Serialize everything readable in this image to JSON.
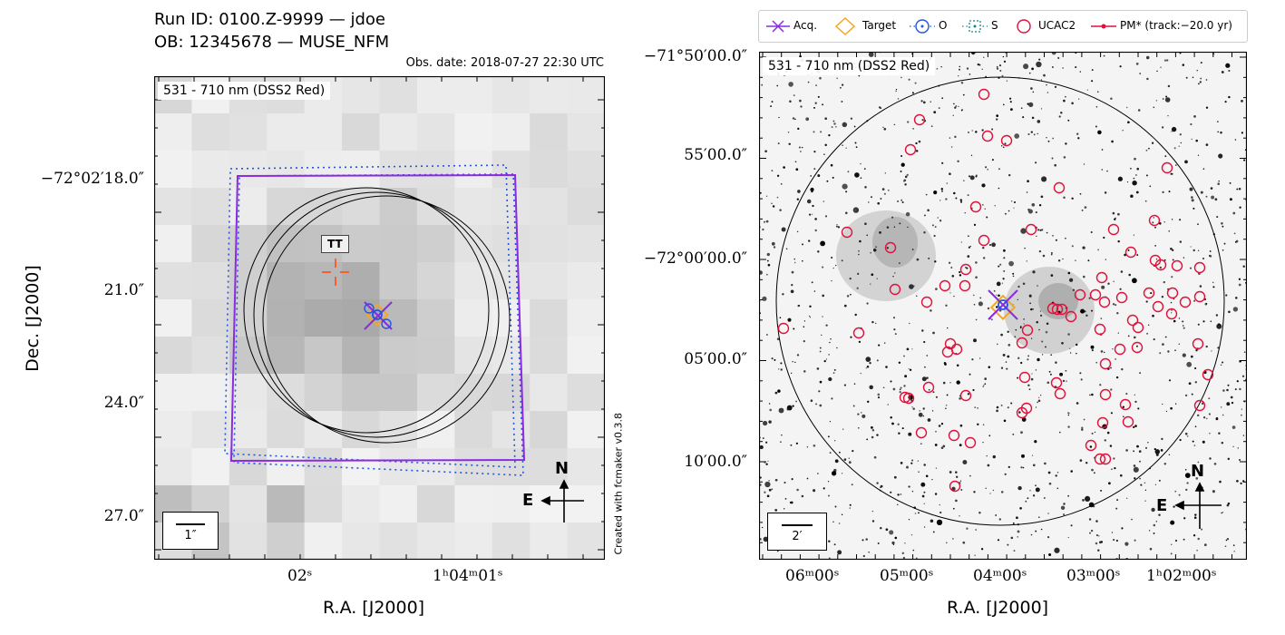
{
  "header": {
    "run_id": "Run ID: 0100.Z-9999 — jdoe",
    "ob": "OB: 12345678 — MUSE_NFM",
    "obs_date": "Obs. date: 2018-07-27 22:30 UTC"
  },
  "left_panel": {
    "band_label": "531 - 710 nm (DSS2 Red)",
    "ytick_labels": [
      "−72°02′18.0″",
      "21.0″",
      "24.0″",
      "27.0″"
    ],
    "xtick_labels": [
      "02ˢ",
      "1ʰ04ᵐ01ˢ"
    ],
    "xlabel": "R.A. [J2000]",
    "ylabel": "Dec. [J2000]",
    "scale_label": "1″",
    "target_tag": "TT",
    "credit": "Created with fcmaker v0.3.8",
    "compass": {
      "north": "N",
      "east": "E"
    }
  },
  "right_panel": {
    "band_label": "531 - 710 nm (DSS2 Red)",
    "ytick_labels": [
      "−71°50′00.0″",
      "55′00.0″",
      "−72°00′00.0″",
      "05′00.0″",
      "10′00.0″"
    ],
    "xtick_labels": [
      "06ᵐ00ˢ",
      "05ᵐ00ˢ",
      "04ᵐ00ˢ",
      "03ᵐ00ˢ",
      "1ʰ02ᵐ00ˢ"
    ],
    "xlabel": "R.A. [J2000]",
    "scale_label": "2′",
    "compass": {
      "north": "N",
      "east": "E"
    },
    "legend": [
      {
        "label": "Acq.",
        "color": "#8a2be2",
        "icon": "acq-cross-icon"
      },
      {
        "label": "Target",
        "color": "#f5a623",
        "icon": "diamond-icon"
      },
      {
        "label": "O",
        "color": "#2255dd",
        "icon": "dotted-circle-icon"
      },
      {
        "label": "S",
        "color": "#118888",
        "icon": "dotted-square-icon"
      },
      {
        "label": "UCAC2",
        "color": "#e0103a",
        "icon": "circle-icon"
      },
      {
        "label": "PM* (track:−20.0 yr)",
        "color": "#e0103a",
        "icon": "track-line-icon"
      }
    ]
  },
  "colors": {
    "acq": "#8a2be2",
    "target": "#f5a623",
    "observed": "#2255dd",
    "sky": "#118888",
    "ucac2": "#e0103a",
    "tt": "#ff5522"
  }
}
